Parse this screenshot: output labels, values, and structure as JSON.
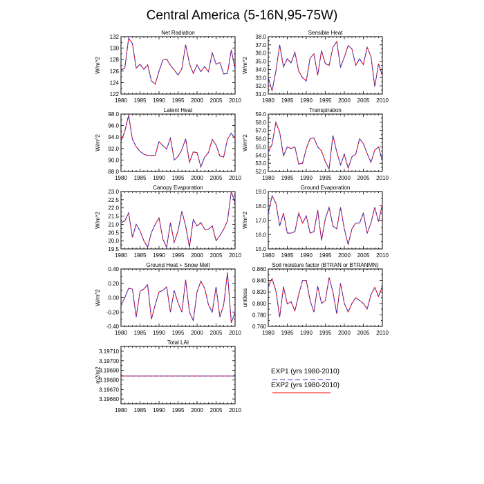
{
  "title": "Central America (5-16N,95-75W)",
  "legend": {
    "entries": [
      {
        "label": "EXP1 (yrs 1980-2010)",
        "color": "#3333cc",
        "style": "dashed"
      },
      {
        "label": "EXP2 (yrs 1980-2010)",
        "color": "#ff0000",
        "style": "solid"
      }
    ]
  },
  "colors": {
    "exp1": "#3333cc",
    "exp2": "#ff0000"
  },
  "chart_data": [
    {
      "type": "line",
      "title": "Net Radiation",
      "ylabel": "W/m^2",
      "xlim": [
        1980,
        2010
      ],
      "xticks": [
        1980,
        1985,
        1990,
        1995,
        2000,
        2005,
        2010
      ],
      "ylim": [
        122,
        132
      ],
      "yticks": [
        "122",
        "124",
        "126",
        "128",
        "130",
        "132"
      ],
      "x_start": 1980,
      "series": [
        {
          "name": "EXP1 (yrs 1980-2010)",
          "values": [
            126.2,
            126.5,
            131.7,
            130.8,
            126.5,
            127.2,
            126.3,
            127.1,
            124.3,
            123.7,
            126.0,
            127.9,
            128.1,
            127.0,
            126.2,
            125.3,
            126.4,
            130.6,
            127.3,
            125.6,
            127.1,
            125.9,
            126.8,
            125.9,
            129.2,
            127.2,
            127.5,
            125.5,
            125.6,
            129.7,
            126.4
          ]
        },
        {
          "name": "EXP2 (yrs 1980-2010)",
          "values": [
            126.2,
            126.5,
            131.7,
            130.8,
            126.5,
            127.2,
            126.3,
            127.1,
            124.3,
            123.7,
            126.0,
            127.9,
            128.1,
            127.0,
            126.2,
            125.3,
            126.4,
            130.6,
            127.3,
            125.6,
            127.1,
            125.9,
            126.8,
            125.9,
            129.2,
            127.2,
            127.5,
            125.5,
            125.6,
            129.7,
            126.4
          ]
        }
      ]
    },
    {
      "type": "line",
      "title": "Sensible Heat",
      "ylabel": "W/m^2",
      "xlim": [
        1980,
        2010
      ],
      "xticks": [
        1980,
        1985,
        1990,
        1995,
        2000,
        2005,
        2010
      ],
      "ylim": [
        31,
        38
      ],
      "yticks": [
        "31.0",
        "32.0",
        "33.0",
        "34.0",
        "35.0",
        "36.0",
        "37.0",
        "38.0"
      ],
      "x_start": 1980,
      "series": [
        {
          "name": "EXP1 (yrs 1980-2010)",
          "values": [
            33.0,
            31.4,
            33.8,
            37.0,
            34.3,
            35.3,
            34.8,
            36.1,
            33.8,
            33.0,
            32.6,
            35.4,
            35.9,
            33.3,
            36.3,
            34.7,
            34.5,
            36.7,
            37.4,
            34.3,
            35.5,
            36.9,
            36.5,
            34.5,
            35.3,
            34.6,
            36.7,
            35.6,
            31.9,
            34.7,
            33.2
          ]
        },
        {
          "name": "EXP2 (yrs 1980-2010)",
          "values": [
            33.0,
            31.4,
            33.8,
            37.0,
            34.3,
            35.3,
            34.8,
            36.1,
            33.8,
            33.0,
            32.6,
            35.4,
            35.9,
            33.3,
            36.3,
            34.7,
            34.5,
            36.7,
            37.4,
            34.3,
            35.5,
            36.9,
            36.5,
            34.5,
            35.3,
            34.6,
            36.7,
            35.6,
            31.9,
            34.7,
            33.2
          ]
        }
      ]
    },
    {
      "type": "line",
      "title": "Latent Heat",
      "ylabel": "W/m^2",
      "xlim": [
        1980,
        2010
      ],
      "xticks": [
        1980,
        1985,
        1990,
        1995,
        2000,
        2005,
        2010
      ],
      "ylim": [
        88,
        98
      ],
      "yticks": [
        "88.0",
        "90.0",
        "92.0",
        "94.0",
        "96.0",
        "98.0"
      ],
      "x_start": 1980,
      "series": [
        {
          "name": "EXP1 (yrs 1980-2010)",
          "values": [
            93.3,
            95.0,
            97.8,
            93.6,
            92.3,
            91.5,
            91.0,
            90.8,
            90.8,
            90.8,
            93.2,
            92.5,
            91.9,
            93.8,
            90.0,
            90.6,
            91.8,
            93.7,
            89.6,
            91.4,
            91.3,
            88.8,
            90.5,
            91.3,
            93.6,
            92.6,
            90.7,
            90.5,
            93.6,
            94.7,
            93.7
          ]
        },
        {
          "name": "EXP2 (yrs 1980-2010)",
          "values": [
            93.3,
            95.0,
            97.8,
            93.6,
            92.3,
            91.5,
            91.0,
            90.8,
            90.8,
            90.8,
            93.2,
            92.5,
            91.9,
            93.8,
            90.0,
            90.6,
            91.8,
            93.7,
            89.6,
            91.4,
            91.3,
            88.8,
            90.5,
            91.3,
            93.6,
            92.6,
            90.7,
            90.5,
            93.6,
            94.7,
            93.7
          ]
        }
      ]
    },
    {
      "type": "line",
      "title": "Transpiration",
      "ylabel": "W/m^2",
      "xlim": [
        1980,
        2010
      ],
      "xticks": [
        1980,
        1985,
        1990,
        1995,
        2000,
        2005,
        2010
      ],
      "ylim": [
        52,
        59
      ],
      "yticks": [
        "52.0",
        "53.0",
        "54.0",
        "55.0",
        "56.0",
        "57.0",
        "58.0",
        "59.0"
      ],
      "x_start": 1980,
      "series": [
        {
          "name": "EXP1 (yrs 1980-2010)",
          "values": [
            54.4,
            55.3,
            58.0,
            56.8,
            53.9,
            55.0,
            54.8,
            55.0,
            52.9,
            53.0,
            54.8,
            56.0,
            56.1,
            55.0,
            54.5,
            53.2,
            52.3,
            56.4,
            54.4,
            52.8,
            54.1,
            52.4,
            53.8,
            54.1,
            56.0,
            55.4,
            54.2,
            53.1,
            54.6,
            55.0,
            53.3
          ]
        },
        {
          "name": "EXP2 (yrs 1980-2010)",
          "values": [
            54.4,
            55.3,
            58.0,
            56.8,
            53.9,
            55.0,
            54.8,
            55.0,
            52.9,
            53.0,
            54.8,
            56.0,
            56.1,
            55.0,
            54.5,
            53.2,
            52.3,
            56.4,
            54.4,
            52.8,
            54.1,
            52.4,
            53.8,
            54.1,
            56.0,
            55.4,
            54.2,
            53.1,
            54.6,
            55.0,
            53.3
          ]
        }
      ]
    },
    {
      "type": "line",
      "title": "Canopy Evaporation",
      "ylabel": "W/m^2",
      "xlim": [
        1980,
        2010
      ],
      "xticks": [
        1980,
        1985,
        1990,
        1995,
        2000,
        2005,
        2010
      ],
      "ylim": [
        19.5,
        23.0
      ],
      "yticks": [
        "19.5",
        "20.0",
        "20.5",
        "21.0",
        "21.5",
        "22.0",
        "22.5",
        "23.0"
      ],
      "x_start": 1980,
      "series": [
        {
          "name": "EXP1 (yrs 1980-2010)",
          "values": [
            21.1,
            21.2,
            21.7,
            20.2,
            21.0,
            20.6,
            20.0,
            19.6,
            20.5,
            21.0,
            21.4,
            20.1,
            19.6,
            21.1,
            19.9,
            20.6,
            21.8,
            20.9,
            19.6,
            21.3,
            20.9,
            21.1,
            20.7,
            20.7,
            20.9,
            20.0,
            20.3,
            20.7,
            21.2,
            23.0,
            22.3
          ]
        },
        {
          "name": "EXP2 (yrs 1980-2010)",
          "values": [
            21.1,
            21.2,
            21.7,
            20.2,
            21.0,
            20.6,
            20.0,
            19.6,
            20.5,
            21.0,
            21.4,
            20.1,
            19.6,
            21.1,
            19.9,
            20.6,
            21.8,
            20.9,
            19.6,
            21.3,
            20.9,
            21.1,
            20.7,
            20.7,
            20.9,
            20.0,
            20.3,
            20.7,
            21.2,
            23.0,
            22.3
          ]
        }
      ]
    },
    {
      "type": "line",
      "title": "Ground Evaporation",
      "ylabel": "W/m^2",
      "xlim": [
        1980,
        2010
      ],
      "xticks": [
        1980,
        1985,
        1990,
        1995,
        2000,
        2005,
        2010
      ],
      "ylim": [
        15.0,
        19.0
      ],
      "yticks": [
        "15.0",
        "16.0",
        "17.0",
        "18.0",
        "19.0"
      ],
      "x_start": 1980,
      "series": [
        {
          "name": "EXP1 (yrs 1980-2010)",
          "values": [
            17.5,
            18.7,
            18.2,
            16.6,
            17.5,
            16.1,
            16.1,
            16.2,
            17.5,
            16.8,
            17.3,
            16.1,
            16.2,
            17.7,
            15.6,
            17.1,
            17.9,
            16.6,
            16.4,
            17.9,
            16.4,
            15.3,
            16.4,
            16.8,
            16.8,
            17.5,
            16.1,
            16.8,
            17.9,
            16.9,
            18.1
          ]
        },
        {
          "name": "EXP2 (yrs 1980-2010)",
          "values": [
            17.5,
            18.7,
            18.2,
            16.6,
            17.5,
            16.1,
            16.1,
            16.2,
            17.5,
            16.8,
            17.3,
            16.1,
            16.2,
            17.7,
            15.6,
            17.1,
            17.9,
            16.6,
            16.4,
            17.9,
            16.4,
            15.3,
            16.4,
            16.8,
            16.8,
            17.5,
            16.1,
            16.8,
            17.9,
            16.9,
            18.1
          ]
        }
      ]
    },
    {
      "type": "line",
      "title": "Ground Heat + Snow Melt",
      "ylabel": "W/m^2",
      "xlim": [
        1980,
        2010
      ],
      "xticks": [
        1980,
        1985,
        1990,
        1995,
        2000,
        2005,
        2010
      ],
      "ylim": [
        -0.4,
        0.4
      ],
      "yticks": [
        "-0.40",
        "-0.20",
        "0.00",
        "0.20",
        "0.40"
      ],
      "x_start": 1980,
      "series": [
        {
          "name": "EXP1 (yrs 1980-2010)",
          "values": [
            -0.1,
            0.0,
            0.13,
            0.12,
            -0.27,
            0.09,
            0.12,
            0.18,
            -0.3,
            -0.1,
            0.08,
            0.1,
            0.15,
            -0.2,
            0.1,
            -0.07,
            -0.2,
            0.25,
            -0.2,
            -0.32,
            0.08,
            0.23,
            0.13,
            -0.1,
            -0.2,
            0.15,
            -0.27,
            -0.1,
            0.35,
            -0.35,
            -0.2
          ]
        },
        {
          "name": "EXP2 (yrs 1980-2010)",
          "values": [
            -0.1,
            0.0,
            0.13,
            0.12,
            -0.27,
            0.09,
            0.12,
            0.18,
            -0.3,
            -0.1,
            0.08,
            0.1,
            0.15,
            -0.2,
            0.1,
            -0.07,
            -0.2,
            0.25,
            -0.2,
            -0.32,
            0.08,
            0.23,
            0.13,
            -0.1,
            -0.2,
            0.15,
            -0.27,
            -0.1,
            0.35,
            -0.35,
            -0.2
          ]
        }
      ]
    },
    {
      "type": "line",
      "title": "Soil moisture factor (BTRAN or BTRANMN)",
      "ylabel": "unitless",
      "xlim": [
        1980,
        2010
      ],
      "xticks": [
        1980,
        1985,
        1990,
        1995,
        2000,
        2005,
        2010
      ],
      "ylim": [
        0.76,
        0.86
      ],
      "yticks": [
        "0.760",
        "0.780",
        "0.800",
        "0.820",
        "0.840",
        "0.860"
      ],
      "x_start": 1980,
      "series": [
        {
          "name": "EXP1 (yrs 1980-2010)",
          "values": [
            0.83,
            0.843,
            0.822,
            0.776,
            0.829,
            0.799,
            0.803,
            0.787,
            0.815,
            0.84,
            0.84,
            0.805,
            0.785,
            0.83,
            0.8,
            0.805,
            0.845,
            0.82,
            0.782,
            0.835,
            0.8,
            0.785,
            0.8,
            0.81,
            0.805,
            0.8,
            0.79,
            0.815,
            0.828,
            0.812,
            0.83
          ]
        },
        {
          "name": "EXP2 (yrs 1980-2010)",
          "values": [
            0.83,
            0.843,
            0.822,
            0.776,
            0.829,
            0.799,
            0.803,
            0.787,
            0.815,
            0.84,
            0.84,
            0.805,
            0.785,
            0.83,
            0.8,
            0.805,
            0.845,
            0.82,
            0.782,
            0.835,
            0.8,
            0.785,
            0.8,
            0.81,
            0.805,
            0.8,
            0.79,
            0.815,
            0.828,
            0.812,
            0.83
          ]
        }
      ]
    },
    {
      "type": "line",
      "title": "Total LAI",
      "ylabel": "m2/m2",
      "xlim": [
        1980,
        2010
      ],
      "xticks": [
        1980,
        1985,
        1990,
        1995,
        2000,
        2005,
        2010
      ],
      "ylim": [
        3.19655,
        3.19715
      ],
      "yticks": [
        "3.19660",
        "3.19670",
        "3.19680",
        "3.19690",
        "3.19700",
        "3.19710"
      ],
      "x_start": 1980,
      "series": [
        {
          "name": "EXP1 (yrs 1980-2010)",
          "values": [
            3.19684,
            3.19684,
            3.19684,
            3.19684,
            3.19684,
            3.19684,
            3.19684,
            3.19684,
            3.19684,
            3.19684,
            3.19684,
            3.19684,
            3.19684,
            3.19684,
            3.19684,
            3.19684,
            3.19684,
            3.19684,
            3.19684,
            3.19684,
            3.19684,
            3.19684,
            3.19684,
            3.19684,
            3.19684,
            3.19684,
            3.19684,
            3.19684,
            3.19684,
            3.19684,
            3.19684
          ]
        },
        {
          "name": "EXP2 (yrs 1980-2010)",
          "values": [
            3.19684,
            3.19684,
            3.19684,
            3.19684,
            3.19684,
            3.19684,
            3.19684,
            3.19684,
            3.19684,
            3.19684,
            3.19684,
            3.19684,
            3.19684,
            3.19684,
            3.19684,
            3.19684,
            3.19684,
            3.19684,
            3.19684,
            3.19684,
            3.19684,
            3.19684,
            3.19684,
            3.19684,
            3.19684,
            3.19684,
            3.19684,
            3.19684,
            3.19684,
            3.19684,
            3.19684
          ]
        }
      ]
    }
  ]
}
